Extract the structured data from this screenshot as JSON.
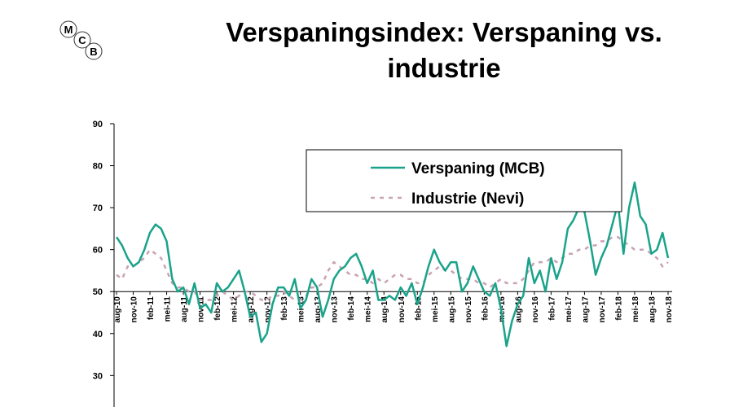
{
  "logo": [
    "M",
    "C",
    "B"
  ],
  "chart_data": {
    "type": "line",
    "title": "Verspaningsindex: Verspaning vs. industrie",
    "categories": [
      "aug-10",
      null,
      null,
      "nov-10",
      null,
      null,
      "feb-11",
      null,
      null,
      "mei-11",
      null,
      null,
      "aug-11",
      null,
      null,
      "nov-11",
      null,
      null,
      "feb-12",
      null,
      null,
      "mei-12",
      null,
      null,
      "aug-12",
      null,
      null,
      "nov-12",
      null,
      null,
      "feb-13",
      null,
      null,
      "mei-13",
      null,
      null,
      "aug-13",
      null,
      null,
      "nov-13",
      null,
      null,
      "feb-14",
      null,
      null,
      "mei-14",
      null,
      null,
      "aug-14",
      null,
      null,
      "nov-14",
      null,
      null,
      "feb-15",
      null,
      null,
      "mei-15",
      null,
      null,
      "aug-15",
      null,
      null,
      "nov-15",
      null,
      null,
      "feb-16",
      null,
      null,
      "mei-16",
      null,
      null,
      "aug-16",
      null,
      null,
      "nov-16",
      null,
      null,
      "feb-17",
      null,
      null,
      "mei-17",
      null,
      null,
      "aug-17",
      null,
      null,
      "nov-17",
      null,
      null,
      "feb-18",
      null,
      null,
      "mei-18",
      null,
      null,
      "aug-18",
      null,
      null,
      "nov-18"
    ],
    "series": [
      {
        "name": "Verspaning (MCB)",
        "color": "#1aa38a",
        "style": "solid",
        "values": [
          63,
          61,
          58,
          56,
          57,
          60,
          64,
          66,
          65,
          62,
          53,
          50,
          51,
          47,
          52,
          46,
          47,
          45,
          52,
          50,
          51,
          53,
          55,
          50,
          44,
          45,
          38,
          40,
          47,
          51,
          51,
          49,
          53,
          46,
          48,
          53,
          51,
          44,
          48,
          53,
          55,
          56,
          58,
          59,
          56,
          52,
          55,
          48,
          48,
          49,
          48,
          51,
          49,
          52,
          47,
          51,
          56,
          60,
          57,
          55,
          57,
          57,
          50,
          52,
          56,
          53,
          50,
          49,
          52,
          46,
          37,
          43,
          47,
          49,
          58,
          52,
          55,
          50,
          58,
          53,
          57,
          65,
          67,
          70,
          69,
          62,
          54,
          58,
          61,
          66,
          71,
          59,
          70,
          76,
          68,
          66,
          59,
          60,
          64,
          58
        ]
      },
      {
        "name": "Industrie (Nevi)",
        "color": "#c9a3b3",
        "style": "dashed",
        "values": [
          54,
          53,
          56,
          56,
          57,
          58,
          60,
          59,
          58,
          55,
          52,
          51,
          51,
          50,
          50,
          48,
          48,
          48,
          49,
          50,
          49,
          48,
          49,
          50,
          50,
          49,
          48,
          48,
          49,
          49,
          50,
          49,
          48,
          48,
          49,
          51,
          51,
          52,
          55,
          57,
          56,
          55,
          54,
          54,
          53,
          53,
          52,
          53,
          52,
          53,
          54,
          54,
          53,
          53,
          52,
          52,
          54,
          55,
          56,
          55,
          55,
          54,
          53,
          53,
          53,
          52,
          52,
          51,
          52,
          53,
          52,
          52,
          52,
          53,
          55,
          57,
          57,
          57,
          58,
          57,
          58,
          59,
          59,
          60,
          60,
          61,
          61,
          62,
          62,
          63,
          63,
          62,
          61,
          60,
          60,
          60,
          59,
          58,
          56,
          57
        ]
      }
    ],
    "ylim": [
      22.5,
      90
    ],
    "yticks": [
      30,
      40,
      50,
      60,
      70,
      80,
      90
    ],
    "xaxis_at": 50
  }
}
